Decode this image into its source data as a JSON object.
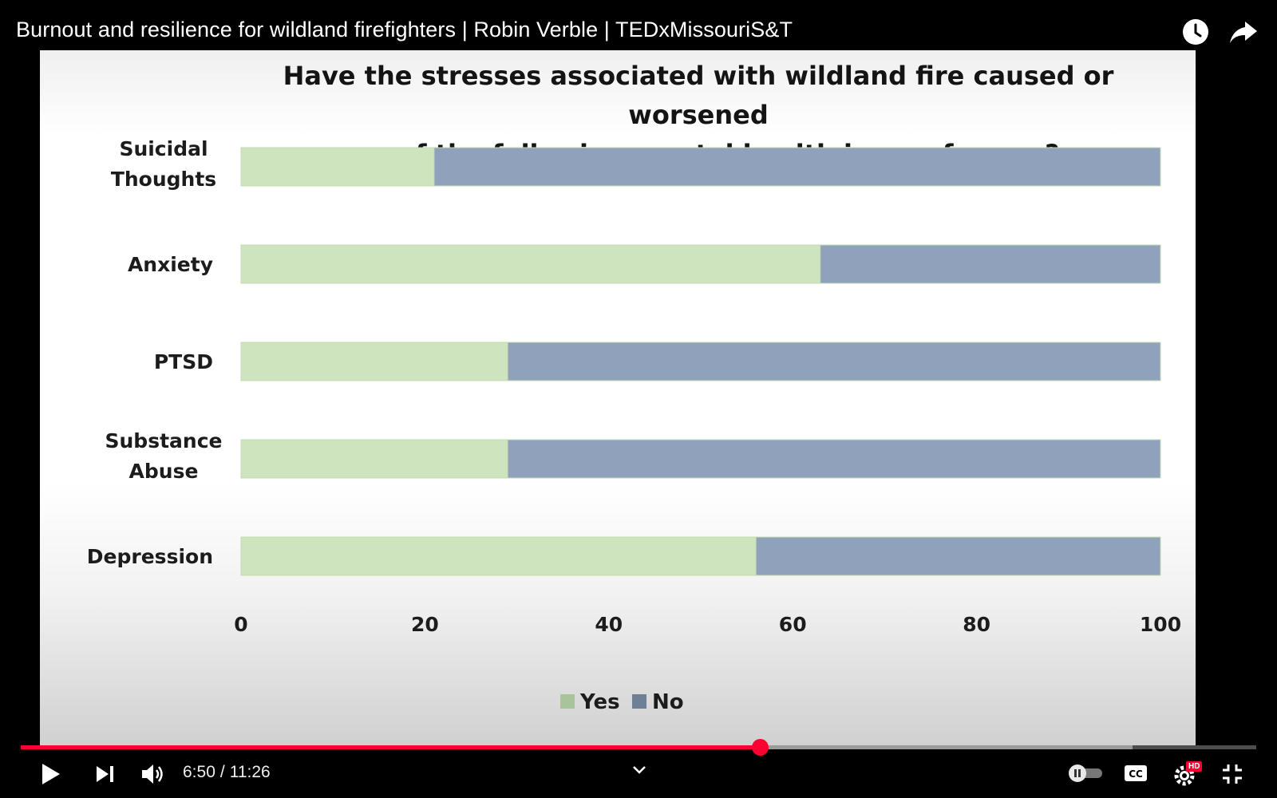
{
  "video": {
    "title": "Burnout and resilience for wildland firefighters | Robin Verble | TEDxMissouriS&T"
  },
  "top_controls": {
    "watch_later_icon": "clock-icon",
    "share_icon": "share-arrow-icon"
  },
  "player": {
    "current_time": "6:50",
    "duration": "11:26",
    "separator": "/",
    "progress_fraction": 0.598,
    "buffered_fraction": 0.9,
    "autoplay_on": false,
    "hd_badge": "HD",
    "icons": [
      "play-icon",
      "next-icon",
      "volume-icon",
      "chevron-down-icon",
      "autoplay-toggle-icon",
      "cc-icon",
      "settings-gear-icon",
      "exit-fullscreen-icon"
    ]
  },
  "chart_data": {
    "type": "bar",
    "orientation": "horizontal",
    "stacked": true,
    "title": "Have the stresses associated with wildland fire caused or worsened\nany of the following mental health issues for you?",
    "categories": [
      "Suicidal\nThoughts",
      "Anxiety",
      "PTSD",
      "Substance\nAbuse",
      "Depression"
    ],
    "series": [
      {
        "name": "Yes",
        "values": [
          21,
          63,
          29,
          29,
          56
        ]
      },
      {
        "name": "No",
        "values": [
          79,
          37,
          71,
          71,
          44
        ]
      }
    ],
    "xlim": [
      0,
      100
    ],
    "xticks": [
      "0",
      "20",
      "40",
      "60",
      "80",
      "100"
    ],
    "grid": false,
    "legend": "bottom-center",
    "colors": {
      "Yes": "#cde4bf",
      "No": "#8fa1bb",
      "Yes_legend": "#a8c49a",
      "No_legend": "#6f7f95"
    }
  }
}
